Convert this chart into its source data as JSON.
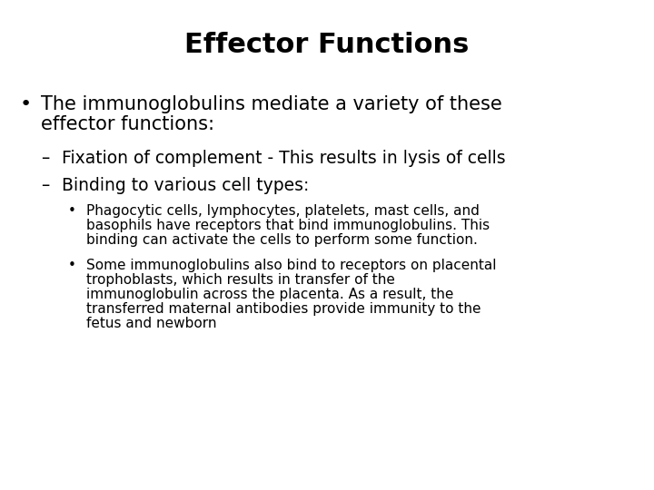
{
  "title": "Effector Functions",
  "title_fontsize": 22,
  "title_fontweight": "bold",
  "background_color": "#ffffff",
  "text_color": "#000000",
  "bullet1_line1": "The immunoglobulins mediate a variety of these",
  "bullet1_line2": "effector functions:",
  "bullet1_fontsize": 15,
  "sub1": "Fixation of complement - This results in lysis of cells",
  "sub2": "Binding to various cell types:",
  "sub_fontsize": 13.5,
  "subsub1_line1": "Phagocytic cells, lymphocytes, platelets, mast cells, and",
  "subsub1_line2": "basophils have receptors that bind immunoglobulins. This",
  "subsub1_line3": "binding can activate the cells to perform some function.",
  "subsub2_line1": "Some immunoglobulins also bind to receptors on placental",
  "subsub2_line2": "trophoblasts, which results in transfer of the",
  "subsub2_line3": "immunoglobulin across the placenta. As a result, the",
  "subsub2_line4": "transferred maternal antibodies provide immunity to the",
  "subsub2_line5": "fetus and newborn",
  "subsub_fontsize": 11
}
